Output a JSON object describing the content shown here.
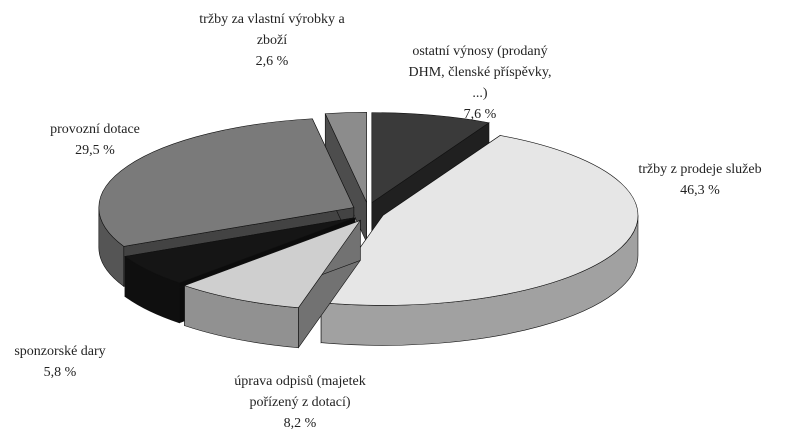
{
  "chart_data": {
    "type": "pie3d",
    "categories": [
      "ostatní výnosy (prodaný DHM, členské příspěvky, ...)",
      "tržby z prodeje služeb",
      "úprava odpisů (majetek pořízený z dotací)",
      "sponzorské dary",
      "provozní dotace",
      "tržby za vlastní výrobky a zboží"
    ],
    "values": [
      7.6,
      46.3,
      8.2,
      5.8,
      29.5,
      2.6
    ],
    "value_labels": [
      "7,6 %",
      "46,3 %",
      "8,2 %",
      "5,8 %",
      "29,5 %",
      "2,6 %"
    ],
    "colors": [
      "#3a3a3a",
      "#e6e6e6",
      "#cfcfcf",
      "#151515",
      "#7a7a7a",
      "#8c8c8c"
    ]
  }
}
